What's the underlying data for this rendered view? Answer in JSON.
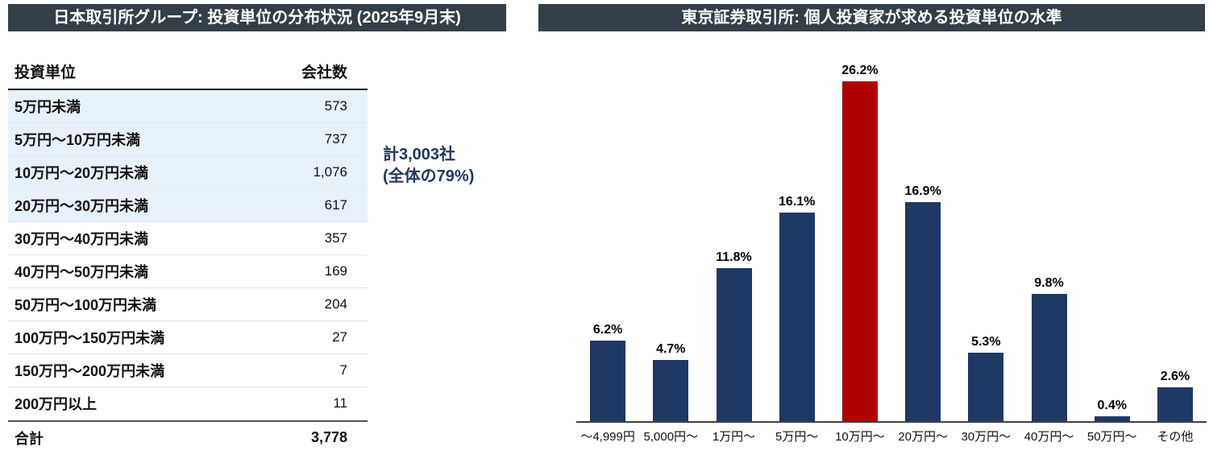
{
  "left_panel": {
    "title": "日本取引所グループ: 投資単位の分布状況 (2025年9月末)",
    "table": {
      "columns": {
        "unit": "投資単位",
        "companies": "会社数"
      },
      "rows": [
        {
          "label": "5万円未満",
          "value": "573",
          "highlighted": true
        },
        {
          "label": "5万円〜10万円未満",
          "value": "737",
          "highlighted": true
        },
        {
          "label": "10万円〜20万円未満",
          "value": "1,076",
          "highlighted": true
        },
        {
          "label": "20万円〜30万円未満",
          "value": "617",
          "highlighted": true
        },
        {
          "label": "30万円〜40万円未満",
          "value": "357",
          "highlighted": false
        },
        {
          "label": "40万円〜50万円未満",
          "value": "169",
          "highlighted": false
        },
        {
          "label": "50万円〜100万円未満",
          "value": "204",
          "highlighted": false
        },
        {
          "label": "100万円〜150万円未満",
          "value": "27",
          "highlighted": false
        },
        {
          "label": "150万円〜200万円未満",
          "value": "7",
          "highlighted": false
        },
        {
          "label": "200万円以上",
          "value": "11",
          "highlighted": false
        }
      ],
      "total": {
        "label": "合計",
        "value": "3,778"
      }
    },
    "annotation": {
      "line1": "計3,003社",
      "line2": "(全体の79%)"
    }
  },
  "right_panel": {
    "title": "東京証券取引所: 個人投資家が求める投資単位の水準"
  },
  "chart_data": {
    "type": "bar",
    "title": "東京証券取引所: 個人投資家が求める投資単位の水準",
    "categories": [
      "〜4,999円",
      "5,000円〜",
      "1万円〜",
      "5万円〜",
      "10万円〜",
      "20万円〜",
      "30万円〜",
      "40万円〜",
      "50万円〜",
      "その他"
    ],
    "values": [
      6.2,
      4.7,
      11.8,
      16.1,
      26.2,
      16.9,
      5.3,
      9.8,
      0.4,
      2.6
    ],
    "value_labels": [
      "6.2%",
      "4.7%",
      "11.8%",
      "16.1%",
      "26.2%",
      "16.9%",
      "5.3%",
      "9.8%",
      "0.4%",
      "2.6%"
    ],
    "highlight_index": 4,
    "bar_color": "#1F3864",
    "highlight_color": "#B00000",
    "xlabel": "",
    "ylabel": "",
    "ylim": [
      0,
      26.4
    ],
    "grid": false,
    "legend": "none",
    "data_labels": true
  },
  "colors": {
    "title_bar_bg": "#333F48",
    "title_bar_text": "#FFFFFF",
    "highlight_row_bg": "#E7F1FB",
    "annotation_text": "#1F3864",
    "bar_navy": "#1F3864",
    "bar_red": "#B00000"
  }
}
